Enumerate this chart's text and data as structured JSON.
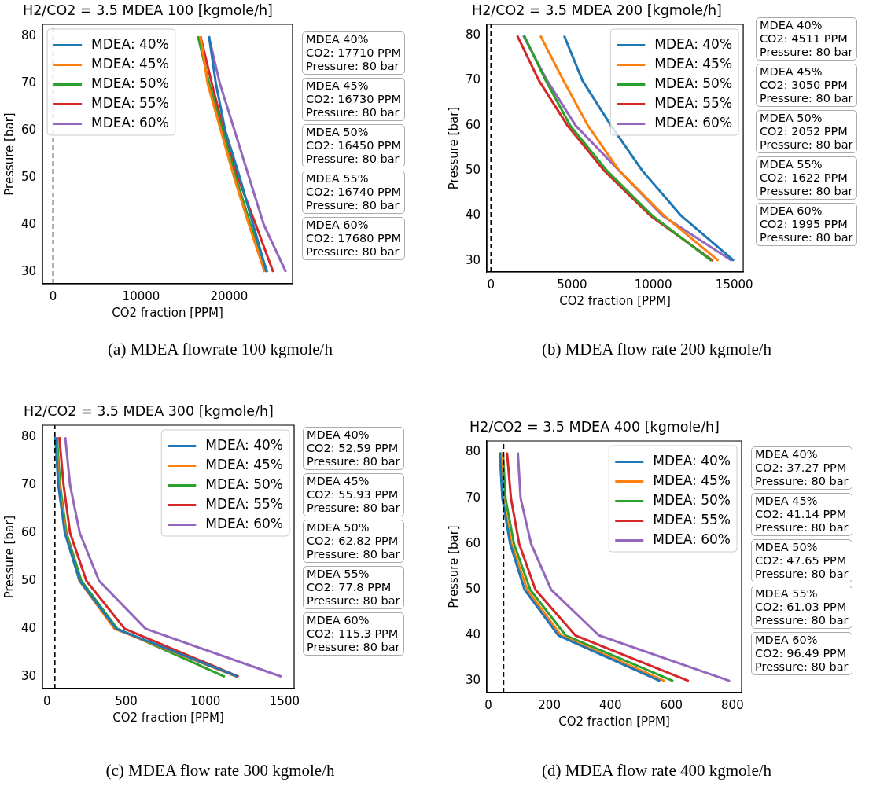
{
  "chart_data": [
    {
      "type": "line",
      "title": "H2/CO2 = 3.5 MDEA 100 [kgmole/h]",
      "xlabel": "CO2 fraction [PPM]",
      "ylabel": "Pressure [bar]",
      "xlim": [
        -1200,
        27200
      ],
      "xticks": [
        0,
        10000,
        20000
      ],
      "ylim": [
        27.5,
        82.5
      ],
      "yticks": [
        30,
        40,
        50,
        60,
        70,
        80
      ],
      "legend": "top left",
      "marker": "none",
      "line_style": "solid",
      "ref_lines": [
        {
          "axis": "x",
          "value": 0,
          "line_style": "dashed",
          "color": "#000000"
        }
      ],
      "series": [
        {
          "name": "MDEA: 40%",
          "color": "#1f77b4",
          "x": [
            24250,
            22730,
            21210,
            19550,
            18490,
            17710
          ],
          "values": [
            30,
            40,
            50,
            60,
            70,
            80
          ]
        },
        {
          "name": "MDEA: 45%",
          "color": "#ff7f0e",
          "x": [
            24030,
            22250,
            20570,
            19050,
            17550,
            16730
          ],
          "values": [
            30,
            40,
            50,
            60,
            70,
            80
          ]
        },
        {
          "name": "MDEA: 50%",
          "color": "#2ca02c",
          "x": [
            24330,
            22430,
            20760,
            19240,
            17730,
            16450
          ],
          "values": [
            30,
            40,
            50,
            60,
            70,
            80
          ]
        },
        {
          "name": "MDEA: 55%",
          "color": "#d62728",
          "x": [
            25000,
            23030,
            21000,
            19390,
            18030,
            16740
          ],
          "values": [
            30,
            40,
            50,
            60,
            70,
            80
          ]
        },
        {
          "name": "MDEA: 60%",
          "color": "#9467bd",
          "x": [
            26450,
            23940,
            22270,
            20610,
            18940,
            17680
          ],
          "values": [
            30,
            40,
            50,
            60,
            70,
            80
          ]
        }
      ],
      "annotations": [
        "MDEA 40%\nCO2: 17710 PPM\nPressure: 80 bar",
        "MDEA 45%\nCO2: 16730 PPM\nPressure: 80 bar",
        "MDEA 50%\nCO2: 16450 PPM\nPressure: 80 bar",
        "MDEA 55%\nCO2: 16740 PPM\nPressure: 80 bar",
        "MDEA 60%\nCO2: 17680 PPM\nPressure: 80 bar",
        "(a) MDEA flowrate 100 kgmole/h"
      ]
    },
    {
      "type": "line",
      "title": "H2/CO2 = 3.5 MDEA 200 [kgmole/h]",
      "xlabel": "CO2 fraction [PPM]",
      "ylabel": "Pressure [bar]",
      "xlim": [
        -250,
        15550
      ],
      "xticks": [
        0,
        5000,
        10000,
        15000
      ],
      "ylim": [
        27.5,
        82.5
      ],
      "yticks": [
        30,
        40,
        50,
        60,
        70,
        80
      ],
      "legend": "top right",
      "marker": "none",
      "line_style": "solid",
      "ref_lines": [
        {
          "axis": "x",
          "value": 0,
          "line_style": "dashed",
          "color": "#000000"
        }
      ],
      "series": [
        {
          "name": "MDEA: 40%",
          "color": "#1f77b4",
          "x": [
            14975,
            11725,
            9330,
            7403,
            5645,
            4511
          ],
          "values": [
            30,
            40,
            50,
            60,
            70,
            80
          ]
        },
        {
          "name": "MDEA: 45%",
          "color": "#ff7f0e",
          "x": [
            14020,
            10670,
            7906,
            5980,
            4472,
            3050
          ],
          "values": [
            30,
            40,
            50,
            60,
            70,
            80
          ]
        },
        {
          "name": "MDEA: 50%",
          "color": "#2ca02c",
          "x": [
            13600,
            9950,
            7152,
            4891,
            3383,
            2052
          ],
          "values": [
            30,
            40,
            50,
            60,
            70,
            80
          ]
        },
        {
          "name": "MDEA: 55%",
          "color": "#d62728",
          "x": [
            13685,
            9833,
            6985,
            4724,
            2965,
            1622
          ],
          "values": [
            30,
            40,
            50,
            60,
            70,
            80
          ]
        },
        {
          "name": "MDEA: 60%",
          "color": "#9467bd",
          "x": [
            14857,
            10586,
            7906,
            5226,
            3467,
            1995
          ],
          "values": [
            30,
            40,
            50,
            60,
            70,
            80
          ]
        }
      ],
      "annotations": [
        "MDEA 40%\nCO2: 4511 PPM\nPressure: 80 bar",
        "MDEA 45%\nCO2: 3050 PPM\nPressure: 80 bar",
        "MDEA 50%\nCO2: 2052 PPM\nPressure: 80 bar",
        "MDEA 55%\nCO2: 1622 PPM\nPressure: 80 bar",
        "MDEA 60%\nCO2: 1995 PPM\nPressure: 80 bar",
        "(b) MDEA flow rate 200 kgmole/h"
      ]
    },
    {
      "type": "line",
      "title": "H2/CO2 = 3.5 MDEA 300 [kgmole/h]",
      "xlabel": "CO2 fraction [PPM]",
      "ylabel": "Pressure [bar]",
      "xlim": [
        -28,
        1560
      ],
      "xticks": [
        0,
        500,
        1000,
        1500
      ],
      "ylim": [
        27.5,
        82.5
      ],
      "yticks": [
        30,
        40,
        50,
        60,
        70,
        80
      ],
      "legend": "top right",
      "marker": "none",
      "line_style": "solid",
      "ref_lines": [
        {
          "axis": "x",
          "value": 50,
          "line_style": "dashed",
          "color": "#000000"
        }
      ],
      "series": [
        {
          "name": "MDEA: 40%",
          "color": "#1f77b4",
          "x": [
            1206,
            436,
            207,
            113,
            71.6,
            52.59
          ],
          "values": [
            30,
            40,
            50,
            60,
            70,
            80
          ]
        },
        {
          "name": "MDEA: 45%",
          "color": "#ff7f0e",
          "x": [
            1198,
            426,
            205,
            117,
            76.5,
            55.93
          ],
          "values": [
            30,
            40,
            50,
            60,
            70,
            80
          ]
        },
        {
          "name": "MDEA: 50%",
          "color": "#2ca02c",
          "x": [
            1123,
            444,
            217,
            123,
            83,
            62.82
          ],
          "values": [
            30,
            40,
            50,
            60,
            70,
            80
          ]
        },
        {
          "name": "MDEA: 55%",
          "color": "#d62728",
          "x": [
            1210,
            490,
            249,
            146,
            105,
            77.8
          ],
          "values": [
            30,
            40,
            50,
            60,
            70,
            80
          ]
        },
        {
          "name": "MDEA: 60%",
          "color": "#9467bd",
          "x": [
            1480,
            623,
            329,
            207,
            146,
            115.3
          ],
          "values": [
            30,
            40,
            50,
            60,
            70,
            80
          ]
        }
      ],
      "annotations": [
        "MDEA 40%\nCO2: 52.59 PPM\nPressure: 80 bar",
        "MDEA 45%\nCO2: 55.93 PPM\nPressure: 80 bar",
        "MDEA 50%\nCO2: 62.82 PPM\nPressure: 80 bar",
        "MDEA 55%\nCO2: 77.8 PPM\nPressure: 80 bar",
        "MDEA 60%\nCO2: 115.3 PPM\nPressure: 80 bar",
        "(c) MDEA flow rate 300 kgmole/h"
      ]
    },
    {
      "type": "line",
      "title": "H2/CO2 = 3.5 MDEA 400 [kgmole/h]",
      "xlabel": "CO2 fraction [PPM]",
      "ylabel": "Pressure [bar]",
      "xlim": [
        -5,
        830
      ],
      "xticks": [
        0,
        200,
        400,
        600,
        800
      ],
      "ylim": [
        27.5,
        82.5
      ],
      "yticks": [
        30,
        40,
        50,
        60,
        70,
        80
      ],
      "legend": "top right",
      "marker": "none",
      "line_style": "solid",
      "ref_lines": [
        {
          "axis": "x",
          "value": 50,
          "line_style": "dashed",
          "color": "#000000"
        }
      ],
      "series": [
        {
          "name": "MDEA: 40%",
          "color": "#1f77b4",
          "x": [
            563,
            229.5,
            118.4,
            71.4,
            45.7,
            37.27
          ],
          "values": [
            30,
            40,
            50,
            60,
            70,
            80
          ]
        },
        {
          "name": "MDEA: 45%",
          "color": "#ff7f0e",
          "x": [
            578,
            238,
            127,
            75.6,
            48.3,
            41.14
          ],
          "values": [
            30,
            40,
            50,
            60,
            70,
            80
          ]
        },
        {
          "name": "MDEA: 50%",
          "color": "#2ca02c",
          "x": [
            606,
            253,
            137,
            84,
            56,
            47.65
          ],
          "values": [
            30,
            40,
            50,
            60,
            70,
            80
          ]
        },
        {
          "name": "MDEA: 55%",
          "color": "#d62728",
          "x": [
            657,
            285,
            154,
            101,
            74,
            61.03
          ],
          "values": [
            30,
            40,
            50,
            60,
            70,
            80
          ]
        },
        {
          "name": "MDEA: 60%",
          "color": "#9467bd",
          "x": [
            792,
            362,
            205.6,
            140,
            105.6,
            96.49
          ],
          "values": [
            30,
            40,
            50,
            60,
            70,
            80
          ]
        }
      ],
      "annotations": [
        "MDEA 40%\nCO2: 37.27 PPM\nPressure: 80 bar",
        "MDEA 45%\nCO2: 41.14 PPM\nPressure: 80 bar",
        "MDEA 50%\nCO2: 47.65 PPM\nPressure: 80 bar",
        "MDEA 55%\nCO2: 61.03 PPM\nPressure: 80 bar",
        "MDEA 60%\nCO2: 96.49 PPM\nPressure: 80 bar",
        "(d) MDEA flow rate 400 kgmole/h"
      ]
    }
  ]
}
